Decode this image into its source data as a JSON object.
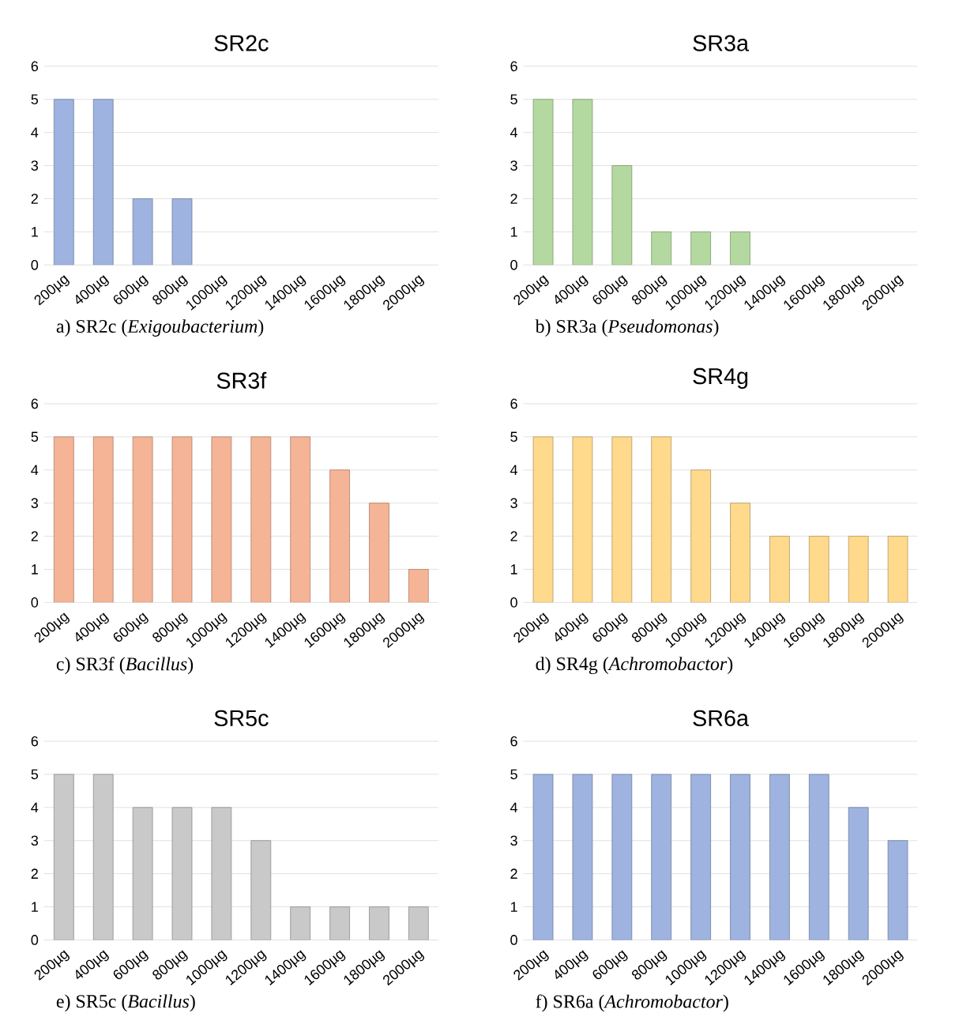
{
  "chart_data": [
    {
      "type": "bar",
      "title": "SR2c",
      "categories": [
        "200µg",
        "400µg",
        "600µg",
        "800µg",
        "1000µg",
        "1200µg",
        "1400µg",
        "1600µg",
        "1800µg",
        "2000µg"
      ],
      "values": [
        5,
        5,
        2,
        2,
        null,
        null,
        null,
        null,
        null,
        null
      ],
      "color": "#9fb3e0",
      "ylim": [
        0,
        6
      ],
      "yticks": [
        0,
        1,
        2,
        3,
        4,
        5,
        6
      ],
      "grid": "y",
      "annotations": [
        "a)   SR2c (*Exigoubacterium*)"
      ]
    },
    {
      "type": "bar",
      "title": "SR3a",
      "categories": [
        "200µg",
        "400µg",
        "600µg",
        "800µg",
        "1000µg",
        "1200µg",
        "1400µg",
        "1600µg",
        "1800µg",
        "2000µg"
      ],
      "values": [
        5,
        5,
        3,
        1,
        1,
        1,
        null,
        null,
        null,
        null
      ],
      "color": "#b4d9a0",
      "ylim": [
        0,
        6
      ],
      "yticks": [
        0,
        1,
        2,
        3,
        4,
        5,
        6
      ],
      "grid": "y",
      "annotations": [
        "b)   SR3a (*Pseudomonas*)"
      ]
    },
    {
      "type": "bar",
      "title": "SR3f",
      "categories": [
        "200µg",
        "400µg",
        "600µg",
        "800µg",
        "1000µg",
        "1200µg",
        "1400µg",
        "1600µg",
        "1800µg",
        "2000µg"
      ],
      "values": [
        5,
        5,
        5,
        5,
        5,
        5,
        5,
        4,
        3,
        1
      ],
      "color": "#f6b496",
      "ylim": [
        0,
        6
      ],
      "yticks": [
        0,
        1,
        2,
        3,
        4,
        5,
        6
      ],
      "grid": "y",
      "annotations": [
        "c)   SR3f (*Bacillus*)"
      ]
    },
    {
      "type": "bar",
      "title": "SR4g",
      "categories": [
        "200µg",
        "400µg",
        "600µg",
        "800µg",
        "1000µg",
        "1200µg",
        "1400µg",
        "1600µg",
        "1800µg",
        "2000µg"
      ],
      "values": [
        5,
        5,
        5,
        5,
        4,
        3,
        2,
        2,
        2,
        2
      ],
      "color": "#ffd98c",
      "ylim": [
        0,
        6
      ],
      "yticks": [
        0,
        1,
        2,
        3,
        4,
        5,
        6
      ],
      "grid": "y",
      "annotations": [
        "d)   SR4g (*Achromobactor*)"
      ]
    },
    {
      "type": "bar",
      "title": "SR5c",
      "categories": [
        "200µg",
        "400µg",
        "600µg",
        "800µg",
        "1000µg",
        "1200µg",
        "1400µg",
        "1600µg",
        "1800µg",
        "2000µg"
      ],
      "values": [
        5,
        5,
        4,
        4,
        4,
        3,
        1,
        1,
        1,
        1
      ],
      "color": "#c9c9c9",
      "ylim": [
        0,
        6
      ],
      "yticks": [
        0,
        1,
        2,
        3,
        4,
        5,
        6
      ],
      "grid": "y",
      "annotations": [
        "e)   SR5c (*Bacillus*)"
      ]
    },
    {
      "type": "bar",
      "title": "SR6a",
      "categories": [
        "200µg",
        "400µg",
        "600µg",
        "800µg",
        "1000µg",
        "1200µg",
        "1400µg",
        "1600µg",
        "1800µg",
        "2000µg"
      ],
      "values": [
        5,
        5,
        5,
        5,
        5,
        5,
        5,
        5,
        4,
        3
      ],
      "color": "#9fb3e0",
      "ylim": [
        0,
        6
      ],
      "yticks": [
        0,
        1,
        2,
        3,
        4,
        5,
        6
      ],
      "grid": "y",
      "annotations": [
        "f)   SR6a (*Achromobactor*)"
      ]
    }
  ]
}
